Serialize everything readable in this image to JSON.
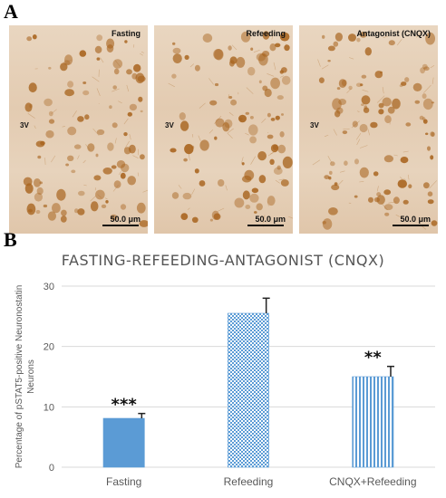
{
  "panel_a": {
    "letter": "A",
    "images": [
      {
        "label": "Fasting",
        "scale": "50.0 μm",
        "ventricle": "3V"
      },
      {
        "label": "Refeeding",
        "scale": "50.0 μm",
        "ventricle": "3V"
      },
      {
        "label": "Antagonist (CNQX)",
        "scale": "50.0 μm",
        "ventricle": "3V"
      }
    ],
    "colors": {
      "stain": "#a8641e",
      "background": "#e6d0b8"
    }
  },
  "panel_b": {
    "letter": "B"
  },
  "chart_data": {
    "type": "bar",
    "title": "FASTING-REFEEDING-ANTAGONIST (CNQX)",
    "ylabel": "Percentage of pSTAT5-positive Neuronostatin Neurons",
    "xlabel": "",
    "categories": [
      "Fasting",
      "Refeeding",
      "CNQX+Refeeding"
    ],
    "values": [
      8.1,
      25.5,
      15.0
    ],
    "errors": [
      0.8,
      2.5,
      1.7
    ],
    "significance": [
      "***",
      "",
      "**"
    ],
    "patterns": [
      "solid",
      "checker",
      "vertical-stripes"
    ],
    "ylim": [
      0,
      30
    ],
    "yticks": [
      0,
      10,
      20,
      30
    ],
    "grid": true,
    "colors": {
      "bar": "#5b9bd5",
      "axis": "#d9d9d9",
      "text": "#595959"
    }
  }
}
